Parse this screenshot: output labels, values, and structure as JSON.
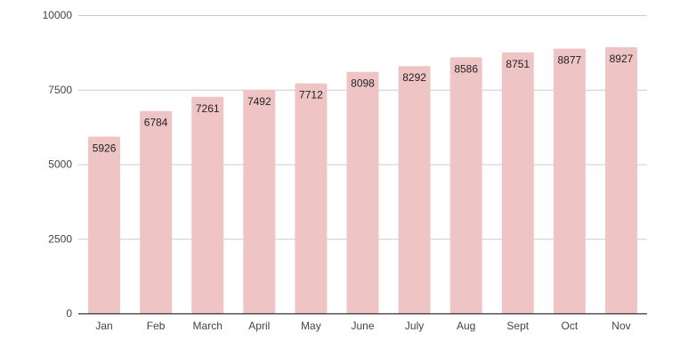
{
  "chart_data": {
    "type": "bar",
    "title": "",
    "xlabel": "",
    "ylabel": "",
    "categories": [
      "Jan",
      "Feb",
      "March",
      "April",
      "May",
      "June",
      "July",
      "Aug",
      "Sept",
      "Oct",
      "Nov"
    ],
    "values": [
      5926,
      6784,
      7261,
      7492,
      7712,
      8098,
      8292,
      8586,
      8751,
      8877,
      8927
    ],
    "ylim": [
      0,
      10000
    ],
    "yticks": [
      0,
      2500,
      5000,
      7500,
      10000
    ],
    "grid": true,
    "legend": "none",
    "bar_color": "#efc4c5",
    "grid_color": "#cccccc",
    "axis_color": "#333333",
    "data_labels": true
  }
}
